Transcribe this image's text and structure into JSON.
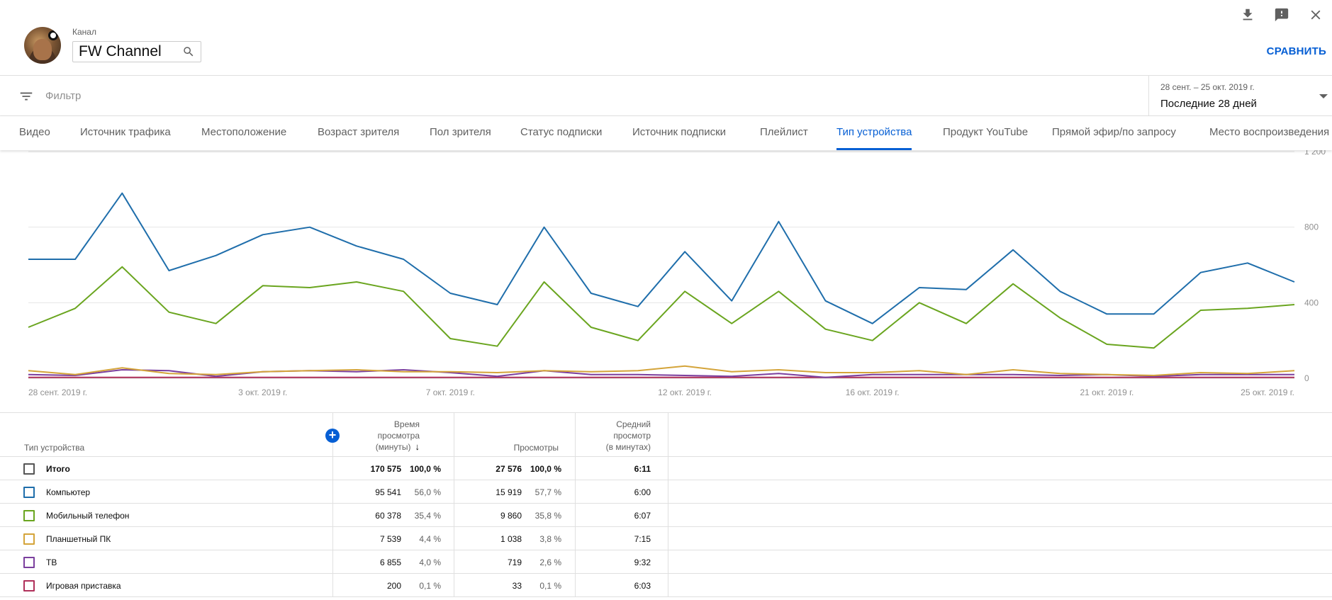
{
  "header": {
    "channel_label": "Канал",
    "channel_name": "FW Channel",
    "compare_label": "СРАВНИТЬ",
    "icons": [
      "download-icon",
      "feedback-icon",
      "close-icon"
    ]
  },
  "filter": {
    "placeholder": "Фильтр",
    "date_range": "28 сент. – 25 окт. 2019 г.",
    "date_label": "Последние 28 дней"
  },
  "tabs": [
    {
      "label": "Видео"
    },
    {
      "label": "Источник трафика"
    },
    {
      "label": "Местоположение"
    },
    {
      "label": "Возраст зрителя"
    },
    {
      "label": "Пол зрителя"
    },
    {
      "label": "Статус подписки"
    },
    {
      "label": "Источник подписки"
    },
    {
      "label": "Плейлист"
    },
    {
      "label": "Тип устройства",
      "active": true
    },
    {
      "label": "Продукт YouTube"
    },
    {
      "label": "Прямой эфир/по запросу"
    },
    {
      "label": "Место воспроизведения"
    }
  ],
  "chart_data": {
    "type": "line",
    "y_ticks": [
      "0",
      "400",
      "800",
      "1 200"
    ],
    "ylim": [
      0,
      1200
    ],
    "x_tick_labels": [
      "28 сент. 2019 г.",
      "3 окт. 2019 г.",
      "7 окт. 2019 г.",
      "12 окт. 2019 г.",
      "16 окт. 2019 г.",
      "21 окт. 2019 г.",
      "25 окт. 2019 г."
    ],
    "x_tick_index": [
      0,
      5,
      9,
      14,
      18,
      23,
      27
    ],
    "grid": true,
    "series": [
      {
        "color": "#1f6eab",
        "values": [
          630,
          630,
          980,
          570,
          650,
          760,
          800,
          700,
          630,
          450,
          390,
          800,
          450,
          380,
          670,
          410,
          830,
          410,
          290,
          480,
          470,
          680,
          460,
          340,
          340,
          560,
          610,
          510
        ]
      },
      {
        "color": "#6aa51f",
        "values": [
          270,
          370,
          590,
          350,
          290,
          490,
          480,
          510,
          460,
          210,
          170,
          510,
          270,
          200,
          460,
          290,
          460,
          260,
          200,
          400,
          290,
          500,
          320,
          180,
          160,
          360,
          370,
          390
        ]
      },
      {
        "color": "#d4a43a",
        "values": [
          40,
          20,
          55,
          25,
          20,
          35,
          40,
          45,
          35,
          35,
          30,
          40,
          35,
          40,
          65,
          35,
          45,
          30,
          30,
          40,
          20,
          45,
          25,
          20,
          15,
          30,
          25,
          40
        ]
      },
      {
        "color": "#7b3f9e",
        "values": [
          20,
          15,
          45,
          40,
          10,
          35,
          40,
          35,
          45,
          30,
          10,
          40,
          20,
          20,
          15,
          10,
          25,
          5,
          20,
          20,
          20,
          20,
          15,
          20,
          10,
          20,
          20,
          20
        ]
      },
      {
        "color": "#b0305a",
        "values": [
          5,
          5,
          5,
          5,
          5,
          5,
          5,
          5,
          5,
          5,
          5,
          5,
          5,
          5,
          5,
          5,
          5,
          5,
          5,
          5,
          5,
          5,
          5,
          5,
          5,
          5,
          5,
          5
        ]
      }
    ]
  },
  "table": {
    "headers": {
      "device": "Тип устройства",
      "watch_time": "Время просмотра (минуты)",
      "watch_lines": [
        "Время",
        "просмотра",
        "(минуты)"
      ],
      "views": "Просмотры",
      "avg_lines": [
        "Средний",
        "просмотр",
        "(в минутах)"
      ]
    },
    "rows": [
      {
        "label": "Итого",
        "color": "#555555",
        "watch": "170 575",
        "watch_pct": "100,0 %",
        "views": "27 576",
        "views_pct": "100,0 %",
        "avg": "6:11"
      },
      {
        "label": "Компьютер",
        "color": "#1f6eab",
        "watch": "95 541",
        "watch_pct": "56,0 %",
        "views": "15 919",
        "views_pct": "57,7 %",
        "avg": "6:00"
      },
      {
        "label": "Мобильный телефон",
        "color": "#6aa51f",
        "watch": "60 378",
        "watch_pct": "35,4 %",
        "views": "9 860",
        "views_pct": "35,8 %",
        "avg": "6:07"
      },
      {
        "label": "Планшетный ПК",
        "color": "#d4a43a",
        "watch": "7 539",
        "watch_pct": "4,4 %",
        "views": "1 038",
        "views_pct": "3,8 %",
        "avg": "7:15"
      },
      {
        "label": "ТВ",
        "color": "#7b3f9e",
        "watch": "6 855",
        "watch_pct": "4,0 %",
        "views": "719",
        "views_pct": "2,6 %",
        "avg": "9:32"
      },
      {
        "label": "Игровая приставка",
        "color": "#b0305a",
        "watch": "200",
        "watch_pct": "0,1 %",
        "views": "33",
        "views_pct": "0,1 %",
        "avg": "6:03"
      }
    ]
  }
}
